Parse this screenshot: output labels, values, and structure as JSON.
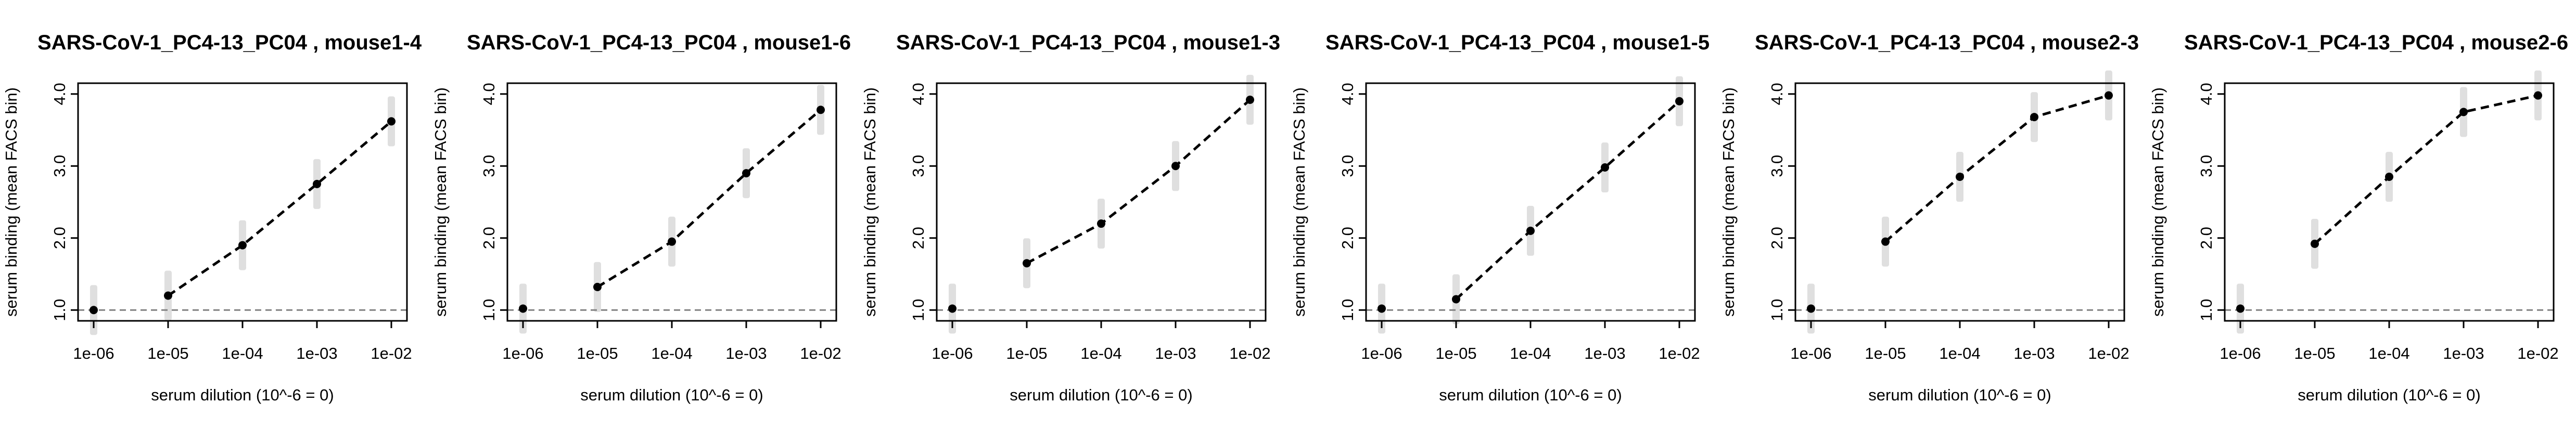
{
  "chart_data": [
    {
      "type": "line",
      "title": "SARS-CoV-1_PC4-13_PC04 , mouse1-4",
      "xlabel": "serum dilution (10^-6 = 0)",
      "ylabel": "serum binding (mean FACS bin)",
      "x_scale": "log",
      "x": [
        1e-06,
        1e-05,
        0.0001,
        0.001,
        0.01
      ],
      "x_tick_labels": [
        "1e-06",
        "1e-05",
        "1e-04",
        "1e-03",
        "1e-02"
      ],
      "y_ticks": [
        1.0,
        2.0,
        3.0,
        4.0
      ],
      "y_tick_labels": [
        "1.0",
        "2.0",
        "3.0",
        "4.0"
      ],
      "ylim": [
        0.85,
        4.15
      ],
      "reference_line_y": 1.0,
      "series": [
        {
          "values": [
            1.0,
            1.2,
            1.9,
            2.75,
            3.62
          ]
        }
      ]
    },
    {
      "type": "line",
      "title": "SARS-CoV-1_PC4-13_PC04 , mouse1-6",
      "xlabel": "serum dilution (10^-6 = 0)",
      "ylabel": "serum binding (mean FACS bin)",
      "x_scale": "log",
      "x": [
        1e-06,
        1e-05,
        0.0001,
        0.001,
        0.01
      ],
      "x_tick_labels": [
        "1e-06",
        "1e-05",
        "1e-04",
        "1e-03",
        "1e-02"
      ],
      "y_ticks": [
        1.0,
        2.0,
        3.0,
        4.0
      ],
      "y_tick_labels": [
        "1.0",
        "2.0",
        "3.0",
        "4.0"
      ],
      "ylim": [
        0.85,
        4.15
      ],
      "reference_line_y": 1.0,
      "series": [
        {
          "values": [
            1.02,
            1.32,
            1.95,
            2.9,
            3.78
          ]
        }
      ]
    },
    {
      "type": "line",
      "title": "SARS-CoV-1_PC4-13_PC04 , mouse1-3",
      "xlabel": "serum dilution (10^-6 = 0)",
      "ylabel": "serum binding (mean FACS bin)",
      "x_scale": "log",
      "x": [
        1e-06,
        1e-05,
        0.0001,
        0.001,
        0.01
      ],
      "x_tick_labels": [
        "1e-06",
        "1e-05",
        "1e-04",
        "1e-03",
        "1e-02"
      ],
      "y_ticks": [
        1.0,
        2.0,
        3.0,
        4.0
      ],
      "y_tick_labels": [
        "1.0",
        "2.0",
        "3.0",
        "4.0"
      ],
      "ylim": [
        0.85,
        4.15
      ],
      "reference_line_y": 1.0,
      "series": [
        {
          "values": [
            1.02,
            1.65,
            2.2,
            3.0,
            3.92
          ]
        }
      ]
    },
    {
      "type": "line",
      "title": "SARS-CoV-1_PC4-13_PC04 , mouse1-5",
      "xlabel": "serum dilution (10^-6 = 0)",
      "ylabel": "serum binding (mean FACS bin)",
      "x_scale": "log",
      "x": [
        1e-06,
        1e-05,
        0.0001,
        0.001,
        0.01
      ],
      "x_tick_labels": [
        "1e-06",
        "1e-05",
        "1e-04",
        "1e-03",
        "1e-02"
      ],
      "y_ticks": [
        1.0,
        2.0,
        3.0,
        4.0
      ],
      "y_tick_labels": [
        "1.0",
        "2.0",
        "3.0",
        "4.0"
      ],
      "ylim": [
        0.85,
        4.15
      ],
      "reference_line_y": 1.0,
      "series": [
        {
          "values": [
            1.02,
            1.15,
            2.1,
            2.98,
            3.9
          ]
        }
      ]
    },
    {
      "type": "line",
      "title": "SARS-CoV-1_PC4-13_PC04 , mouse2-3",
      "xlabel": "serum dilution (10^-6 = 0)",
      "ylabel": "serum binding (mean FACS bin)",
      "x_scale": "log",
      "x": [
        1e-06,
        1e-05,
        0.0001,
        0.001,
        0.01
      ],
      "x_tick_labels": [
        "1e-06",
        "1e-05",
        "1e-04",
        "1e-03",
        "1e-02"
      ],
      "y_ticks": [
        1.0,
        2.0,
        3.0,
        4.0
      ],
      "y_tick_labels": [
        "1.0",
        "2.0",
        "3.0",
        "4.0"
      ],
      "ylim": [
        0.85,
        4.15
      ],
      "reference_line_y": 1.0,
      "series": [
        {
          "values": [
            1.02,
            1.95,
            2.85,
            3.68,
            3.98
          ]
        }
      ]
    },
    {
      "type": "line",
      "title": "SARS-CoV-1_PC4-13_PC04 , mouse2-6",
      "xlabel": "serum dilution (10^-6 = 0)",
      "ylabel": "serum binding (mean FACS bin)",
      "x_scale": "log",
      "x": [
        1e-06,
        1e-05,
        0.0001,
        0.001,
        0.01
      ],
      "x_tick_labels": [
        "1e-06",
        "1e-05",
        "1e-04",
        "1e-03",
        "1e-02"
      ],
      "y_ticks": [
        1.0,
        2.0,
        3.0,
        4.0
      ],
      "y_tick_labels": [
        "1.0",
        "2.0",
        "3.0",
        "4.0"
      ],
      "ylim": [
        0.85,
        4.15
      ],
      "reference_line_y": 1.0,
      "series": [
        {
          "values": [
            1.02,
            1.92,
            2.85,
            3.75,
            3.98
          ]
        }
      ]
    }
  ],
  "colors": {
    "points": "#000000",
    "fit_line": "#000000",
    "reference_line": "#808080",
    "smear": "#8c8c8c",
    "axes": "#000000"
  }
}
